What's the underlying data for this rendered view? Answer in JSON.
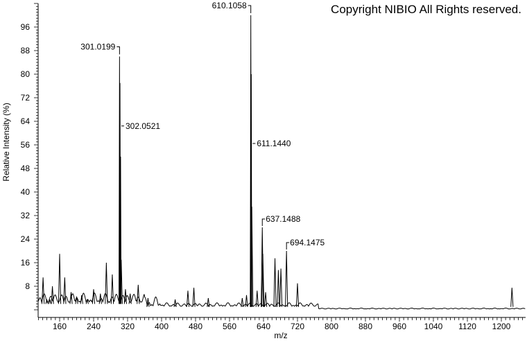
{
  "copyright": "Copyright NIBIO All Rights reserved.",
  "chart_data": {
    "type": "line",
    "title": "",
    "xlabel": "m/z",
    "ylabel": "Relative Intensity (%)",
    "xlim": [
      110,
      1257
    ],
    "ylim": [
      0,
      104
    ],
    "x_ticks": [
      160,
      240,
      320,
      400,
      480,
      560,
      640,
      720,
      800,
      880,
      960,
      1040,
      1120,
      1200
    ],
    "y_ticks": [
      8,
      16,
      24,
      32,
      40,
      48,
      56,
      64,
      72,
      80,
      88,
      96
    ],
    "grid": false,
    "color": "#000000",
    "peaks": [
      {
        "mz": 121,
        "intensity": 11
      },
      {
        "mz": 130,
        "intensity": 3.5
      },
      {
        "mz": 137,
        "intensity": 3.5
      },
      {
        "mz": 143,
        "intensity": 8
      },
      {
        "mz": 160,
        "intensity": 19
      },
      {
        "mz": 172,
        "intensity": 11
      },
      {
        "mz": 187,
        "intensity": 6
      },
      {
        "mz": 200,
        "intensity": 4.5
      },
      {
        "mz": 212,
        "intensity": 5
      },
      {
        "mz": 225,
        "intensity": 3.5
      },
      {
        "mz": 240,
        "intensity": 7
      },
      {
        "mz": 256,
        "intensity": 5.5
      },
      {
        "mz": 270,
        "intensity": 16
      },
      {
        "mz": 284,
        "intensity": 12
      },
      {
        "mz": 301.0199,
        "intensity": 86,
        "label": "301.0199",
        "label_side": "left"
      },
      {
        "mz": 302.0521,
        "intensity": 77,
        "label": "302.0521",
        "label_side": "right"
      },
      {
        "mz": 303.5,
        "intensity": 52
      },
      {
        "mz": 305,
        "intensity": 17
      },
      {
        "mz": 315,
        "intensity": 7
      },
      {
        "mz": 326,
        "intensity": 5.5
      },
      {
        "mz": 345,
        "intensity": 8.5
      },
      {
        "mz": 368,
        "intensity": 4
      },
      {
        "mz": 432,
        "intensity": 3.5
      },
      {
        "mz": 462,
        "intensity": 6.5
      },
      {
        "mz": 476,
        "intensity": 7.5
      },
      {
        "mz": 510,
        "intensity": 4
      },
      {
        "mz": 590,
        "intensity": 4
      },
      {
        "mz": 600,
        "intensity": 5
      },
      {
        "mz": 610.1058,
        "intensity": 100,
        "label": "610.1058",
        "label_side": "left"
      },
      {
        "mz": 611.144,
        "intensity": 80,
        "label": "611.1440",
        "label_side": "right"
      },
      {
        "mz": 612.5,
        "intensity": 35
      },
      {
        "mz": 625,
        "intensity": 6.5
      },
      {
        "mz": 637.1488,
        "intensity": 28,
        "label": "637.1488",
        "label_side": "right"
      },
      {
        "mz": 638.5,
        "intensity": 19
      },
      {
        "mz": 645,
        "intensity": 6
      },
      {
        "mz": 667,
        "intensity": 17.5
      },
      {
        "mz": 675,
        "intensity": 13.5
      },
      {
        "mz": 681,
        "intensity": 14
      },
      {
        "mz": 694.1475,
        "intensity": 20,
        "label": "694.1475",
        "label_side": "right"
      },
      {
        "mz": 720,
        "intensity": 9
      },
      {
        "mz": 1225,
        "intensity": 7.5
      }
    ]
  }
}
